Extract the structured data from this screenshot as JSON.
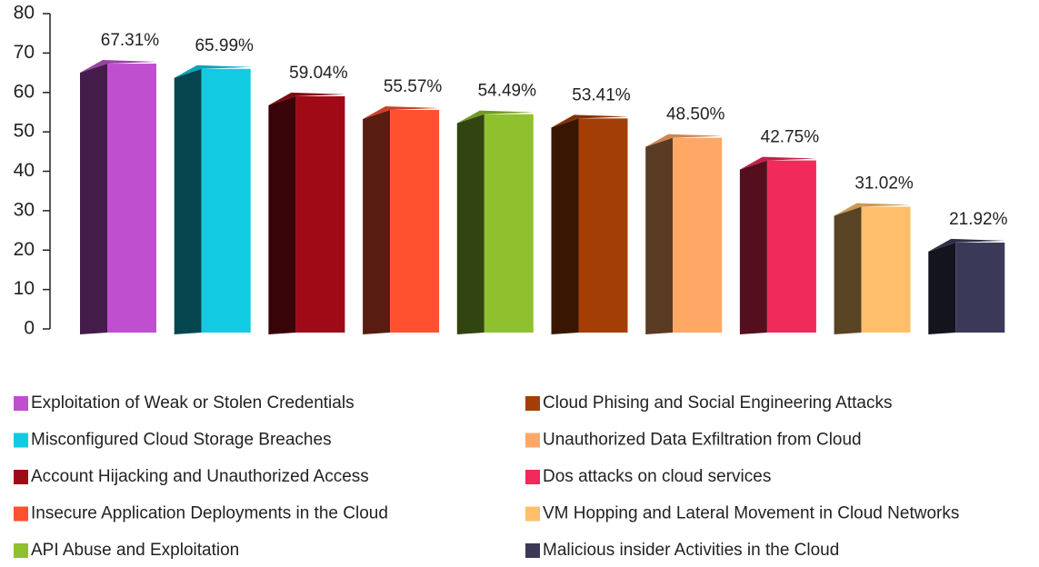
{
  "chart_data": {
    "type": "bar3d",
    "categories": [
      "Exploitation of Weak or Stolen Credentials",
      "Misconfigured Cloud Storage Breaches",
      "Account Hijacking and Unauthorized Access",
      "Insecure  Application Deployments in the Cloud",
      "API Abuse and Exploitation",
      "Cloud Phising and Social Engineering Attacks",
      "Unauthorized Data Exfiltration from Cloud",
      "Dos attacks on cloud services",
      "VM Hopping and Lateral Movement in Cloud Networks",
      "Malicious insider Activities in the Cloud"
    ],
    "values": [
      67.31,
      65.99,
      59.04,
      55.57,
      54.49,
      53.41,
      48.5,
      42.75,
      31.02,
      21.92
    ],
    "value_labels": [
      "67.31%",
      "65.99%",
      "59.04%",
      "55.57%",
      "54.49%",
      "53.41%",
      "48.50%",
      "42.75%",
      "31.02%",
      "21.92%"
    ],
    "colors": [
      "#c04fd0",
      "#12cbe3",
      "#a00a16",
      "#ff5030",
      "#8fc12e",
      "#a33f06",
      "#ffa866",
      "#f02a5a",
      "#ffbf6a",
      "#3a3a58"
    ],
    "ylim": [
      0,
      80
    ],
    "yticks": [
      0,
      10,
      20,
      30,
      40,
      50,
      60,
      70,
      80
    ],
    "legend": "bottom"
  }
}
